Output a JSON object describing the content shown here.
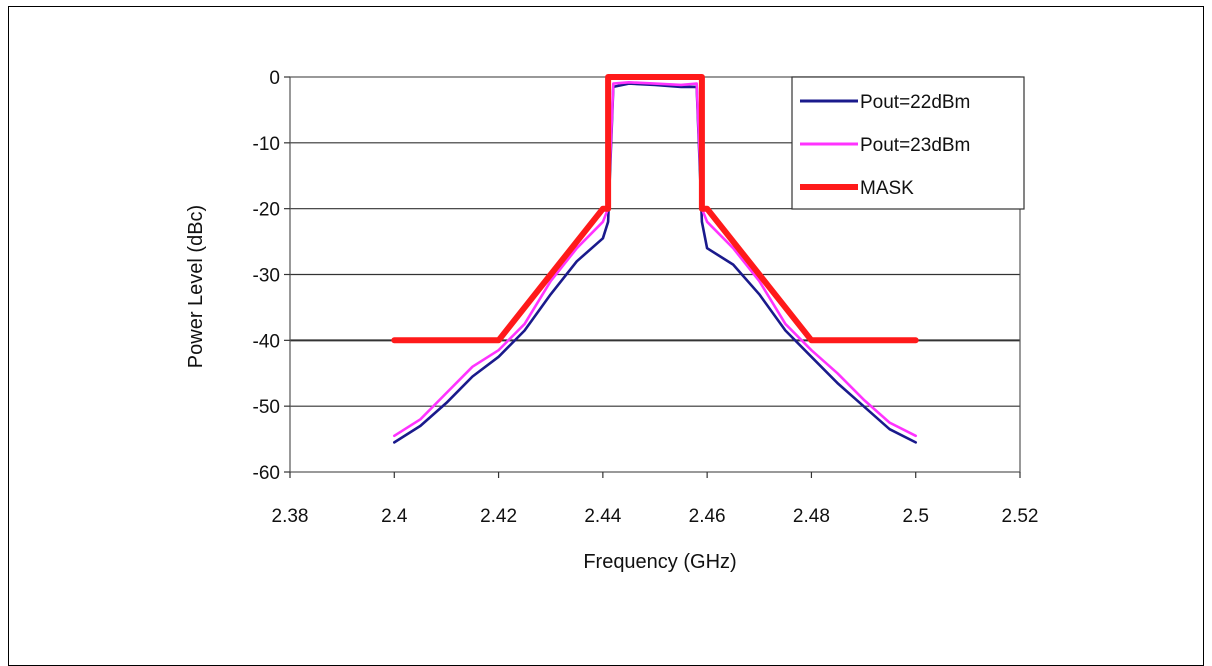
{
  "chart_data": {
    "type": "line",
    "title": "",
    "xlabel": "Frequency (GHz)",
    "ylabel": "Power Level (dBc)",
    "xlim": [
      2.38,
      2.52
    ],
    "ylim": [
      -60,
      0
    ],
    "xticks": [
      "2.38",
      "2.4",
      "2.42",
      "2.44",
      "2.46",
      "2.48",
      "2.5",
      "2.52"
    ],
    "yticks": [
      "0",
      "-10",
      "-20",
      "-30",
      "-40",
      "-50",
      "-60"
    ],
    "grid": "horizontal",
    "legend_position": "top-right",
    "series": [
      {
        "name": "Pout=22dBm",
        "color": "#1a1a8c",
        "x": [
          2.4,
          2.405,
          2.41,
          2.415,
          2.42,
          2.425,
          2.43,
          2.435,
          2.44,
          2.441,
          2.442,
          2.445,
          2.45,
          2.455,
          2.458,
          2.459,
          2.46,
          2.465,
          2.47,
          2.475,
          2.48,
          2.485,
          2.49,
          2.495,
          2.5
        ],
        "y": [
          -55.5,
          -53,
          -49.5,
          -45.5,
          -42.5,
          -38.5,
          -33,
          -28,
          -24.5,
          -22,
          -1.5,
          -1,
          -1.2,
          -1.5,
          -1.5,
          -22,
          -26,
          -28.5,
          -33,
          -38.5,
          -42.5,
          -46.5,
          -50,
          -53.5,
          -55.5
        ]
      },
      {
        "name": "Pout=23dBm",
        "color": "#ff33ff",
        "x": [
          2.4,
          2.405,
          2.41,
          2.415,
          2.42,
          2.425,
          2.43,
          2.435,
          2.44,
          2.441,
          2.442,
          2.445,
          2.45,
          2.455,
          2.458,
          2.459,
          2.46,
          2.465,
          2.47,
          2.475,
          2.48,
          2.485,
          2.49,
          2.495,
          2.5
        ],
        "y": [
          -54.5,
          -52,
          -48,
          -44,
          -41.5,
          -37.5,
          -31,
          -26,
          -22,
          -20,
          -1,
          -0.8,
          -1,
          -1.2,
          -1,
          -20,
          -22,
          -26,
          -31,
          -37.5,
          -41.5,
          -45,
          -49,
          -52.5,
          -54.5
        ]
      },
      {
        "name": "MASK",
        "color": "#ff1a1a",
        "x": [
          2.4,
          2.42,
          2.43,
          2.44,
          2.441,
          2.441,
          2.459,
          2.459,
          2.46,
          2.47,
          2.48,
          2.5
        ],
        "y": [
          -40,
          -40,
          -30,
          -20,
          -20,
          0,
          0,
          -20,
          -20,
          -30,
          -40,
          -40
        ]
      }
    ]
  }
}
